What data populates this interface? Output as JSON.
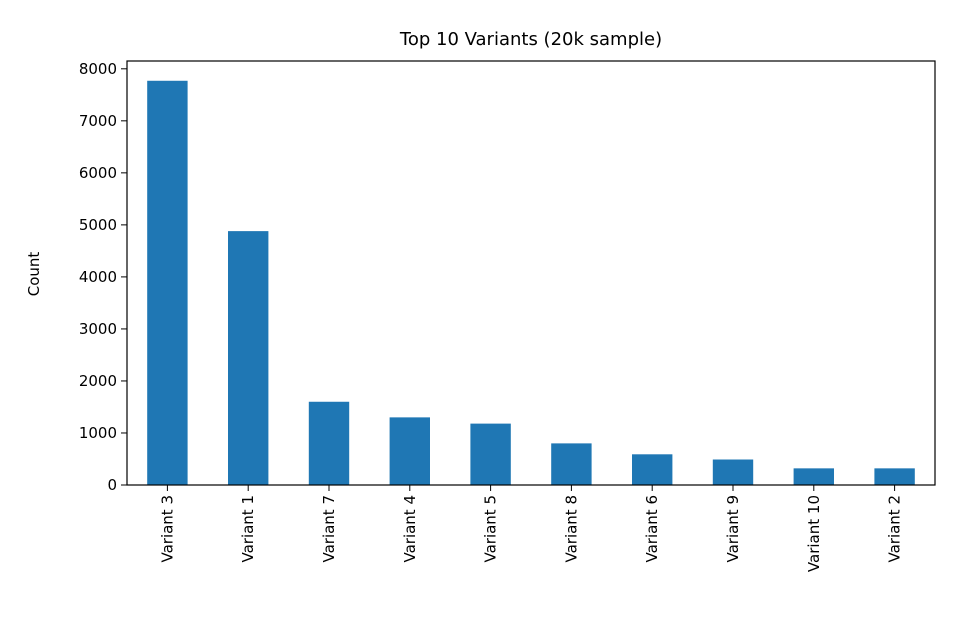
{
  "chart_data": {
    "type": "bar",
    "title": "Top 10 Variants (20k sample)",
    "xlabel": "",
    "ylabel": "Count",
    "categories": [
      "Variant 3",
      "Variant 1",
      "Variant 7",
      "Variant 4",
      "Variant 5",
      "Variant 8",
      "Variant 6",
      "Variant 9",
      "Variant 10",
      "Variant 2"
    ],
    "values": [
      7770,
      4880,
      1600,
      1300,
      1180,
      800,
      590,
      490,
      320,
      320
    ],
    "ylim": [
      0,
      8150
    ],
    "yticks": [
      0,
      1000,
      2000,
      3000,
      4000,
      5000,
      6000,
      7000,
      8000
    ],
    "bar_color": "#1f77b4",
    "grid": false
  }
}
